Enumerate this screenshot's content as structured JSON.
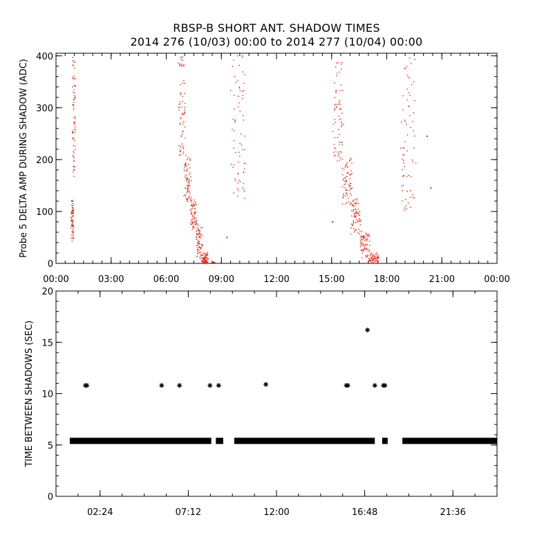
{
  "header": {
    "title": "RBSP-B SHORT ANT. SHADOW TIMES",
    "subtitle": "2014 276 (10/03) 00:00 to 2014 277 (10/04) 00:00"
  },
  "colors": {
    "top_points": "#e8200c",
    "bottom_points": "#000000",
    "axes": "#000000",
    "background": "#ffffff"
  },
  "chart_data": [
    {
      "type": "scatter",
      "ylabel": "Probe 5 DELTA AMP DURING SHADOW (ADC)",
      "xlabel": "",
      "xlim": [
        0,
        24
      ],
      "ylim": [
        0,
        405
      ],
      "x_unit": "hours",
      "x_ticks": [
        0,
        3,
        6,
        9,
        12,
        15,
        18,
        21,
        24
      ],
      "x_tick_labels": [
        "00:00",
        "03:00",
        "06:00",
        "09:00",
        "12:00",
        "15:00",
        "18:00",
        "21:00",
        "00:00"
      ],
      "y_ticks": [
        0,
        100,
        200,
        300,
        400
      ],
      "y_tick_labels": [
        "0",
        "100",
        "200",
        "300",
        "400"
      ],
      "marker_color": "#e8200c",
      "clusters": [
        {
          "x": [
            0.85,
            1.02
          ],
          "y": [
            [
              45,
              120
            ],
            [
              170,
              400
            ]
          ]
        },
        {
          "x": [
            6.7,
            8.25
          ],
          "y": [
            [
              402,
              200
            ],
            [
              200,
              120
            ],
            [
              120,
              70
            ],
            [
              70,
              15
            ],
            [
              15,
              0
            ]
          ]
        },
        {
          "x": [
            9.55,
            10.35
          ],
          "y": [
            [
              130,
              400
            ]
          ]
        },
        {
          "x": [
            15.1,
            17.55
          ],
          "y": [
            [
              402,
              200
            ],
            [
              200,
              120
            ],
            [
              120,
              60
            ],
            [
              60,
              15
            ],
            [
              15,
              0
            ]
          ]
        },
        {
          "x": [
            18.8,
            19.55
          ],
          "y": [
            [
              100,
              400
            ]
          ]
        }
      ],
      "isolated_points": [
        {
          "x": 8.55,
          "y": 2
        },
        {
          "x": 8.63,
          "y": 2
        },
        {
          "x": 15.05,
          "y": 80
        },
        {
          "x": 18.5,
          "y": 2
        },
        {
          "x": 20.2,
          "y": 245
        },
        {
          "x": 20.4,
          "y": 145
        },
        {
          "x": 9.3,
          "y": 50
        }
      ]
    },
    {
      "type": "scatter",
      "ylabel": "TIME BETWEEN SHADOWS (SEC)",
      "xlabel": "",
      "xlim": [
        0,
        24
      ],
      "ylim": [
        0,
        20
      ],
      "x_unit": "hours",
      "x_ticks": [
        2.4,
        7.2,
        12.0,
        16.8,
        21.6
      ],
      "x_tick_labels": [
        "02:24",
        "07:12",
        "12:00",
        "16:48",
        "21:36"
      ],
      "y_ticks": [
        0,
        5,
        10,
        15,
        20
      ],
      "y_tick_labels": [
        "0",
        "5",
        "10",
        "15",
        "20"
      ],
      "marker": "asterisk",
      "marker_color": "#000000",
      "baseline_value": 5.4,
      "baseline_segments": [
        [
          0.75,
          8.45
        ],
        [
          8.7,
          9.1
        ],
        [
          9.7,
          17.35
        ],
        [
          17.75,
          18.05
        ],
        [
          18.85,
          24.0
        ]
      ],
      "points": [
        {
          "x": 1.6,
          "y": 10.8
        },
        {
          "x": 1.68,
          "y": 10.8
        },
        {
          "x": 5.75,
          "y": 10.8
        },
        {
          "x": 6.72,
          "y": 10.8
        },
        {
          "x": 8.38,
          "y": 10.8
        },
        {
          "x": 8.85,
          "y": 10.8
        },
        {
          "x": 11.42,
          "y": 10.9
        },
        {
          "x": 15.8,
          "y": 10.8
        },
        {
          "x": 15.88,
          "y": 10.8
        },
        {
          "x": 16.95,
          "y": 16.2
        },
        {
          "x": 17.35,
          "y": 10.8
        },
        {
          "x": 17.82,
          "y": 10.8
        },
        {
          "x": 17.9,
          "y": 10.8
        }
      ]
    }
  ]
}
